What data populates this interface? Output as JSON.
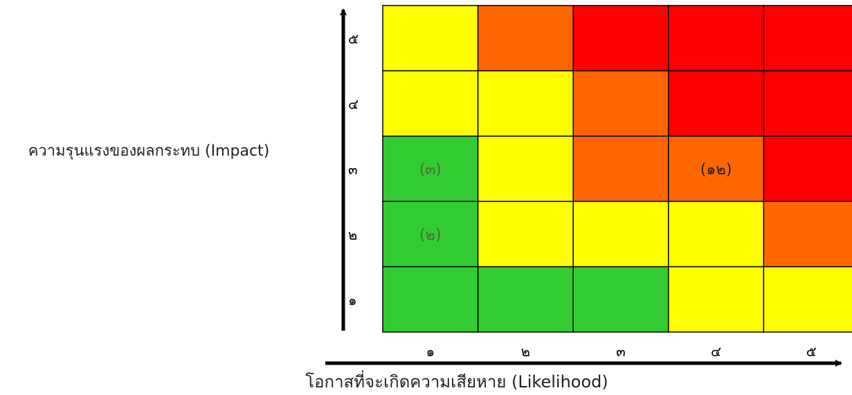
{
  "chart_data": {
    "type": "heatmap",
    "title": "",
    "xlabel": "โอกาสที่จะเกิดความเสียหาย (Likelihood)",
    "ylabel": "ความรุนแรงของผลกระทบ (Impact)",
    "x_categories": [
      "๑",
      "๒",
      "๓",
      "๔",
      "๕"
    ],
    "y_categories": [
      "๑",
      "๒",
      "๓",
      "๔",
      "๕"
    ],
    "cells": [
      [
        "yellow",
        "orange",
        "red",
        "red",
        "red"
      ],
      [
        "yellow",
        "yellow",
        "orange",
        "red",
        "red"
      ],
      [
        "green",
        "yellow",
        "orange",
        "orange",
        "red"
      ],
      [
        "green",
        "yellow",
        "yellow",
        "yellow",
        "orange"
      ],
      [
        "green",
        "green",
        "green",
        "yellow",
        "yellow"
      ]
    ],
    "row_order": [
      "๕",
      "๔",
      "๓",
      "๒",
      "๑"
    ],
    "labels": [
      {
        "likelihood": 1,
        "impact": 3,
        "text": "(๓)"
      },
      {
        "likelihood": 4,
        "impact": 3,
        "text": "(๑๒)"
      },
      {
        "likelihood": 1,
        "impact": 2,
        "text": "(๒)"
      }
    ],
    "colors": {
      "green": "#33cc33",
      "yellow": "#ffff00",
      "orange": "#ff6600",
      "red": "#ff0000",
      "label_on_green": "#4d6b33",
      "label_on_orange": "#222222"
    },
    "grid": true
  }
}
